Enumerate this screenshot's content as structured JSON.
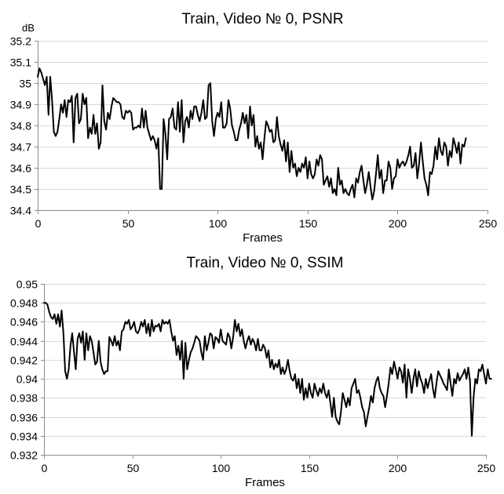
{
  "chart_data": [
    {
      "type": "line",
      "title": "Train, Video № 0, PSNR",
      "xlabel": "Frames",
      "ylabel": "dB",
      "xlim": [
        0,
        250
      ],
      "ylim": [
        34.4,
        35.2
      ],
      "xticks": [
        0,
        50,
        100,
        150,
        200,
        250
      ],
      "yticks": [
        34.4,
        34.5,
        34.6,
        34.7,
        34.8,
        34.9,
        35,
        35.1,
        35.2
      ],
      "ytick_labels": [
        "34.4",
        "34.5",
        "34.6",
        "34.7",
        "34.8",
        "34.9",
        "35",
        "35.1",
        "35.2"
      ],
      "grid": "horizontal",
      "legend": "none",
      "x_start": 0,
      "x_step": 1,
      "values": [
        35.03,
        35.07,
        35.05,
        35.02,
        34.99,
        35.03,
        34.85,
        35.03,
        34.92,
        34.77,
        34.75,
        34.77,
        34.83,
        34.9,
        34.86,
        34.92,
        34.84,
        34.92,
        34.91,
        34.94,
        34.72,
        34.93,
        34.95,
        34.81,
        34.83,
        34.95,
        34.9,
        34.93,
        34.74,
        34.79,
        34.76,
        34.85,
        34.76,
        34.81,
        34.69,
        34.72,
        34.99,
        34.82,
        34.78,
        34.86,
        34.83,
        34.89,
        34.93,
        34.92,
        34.91,
        34.91,
        34.9,
        34.84,
        34.83,
        34.87,
        34.86,
        34.87,
        34.86,
        34.78,
        34.79,
        34.79,
        34.8,
        34.79,
        34.88,
        34.79,
        34.87,
        34.79,
        34.76,
        34.73,
        34.75,
        34.73,
        34.69,
        34.74,
        34.5,
        34.5,
        34.83,
        34.76,
        34.64,
        34.83,
        34.84,
        34.88,
        34.79,
        34.78,
        34.91,
        34.77,
        34.92,
        34.72,
        34.82,
        34.84,
        34.79,
        34.87,
        34.83,
        34.89,
        34.89,
        34.85,
        34.82,
        34.86,
        34.92,
        34.83,
        34.84,
        34.99,
        35.0,
        34.82,
        34.75,
        34.83,
        34.86,
        34.84,
        34.91,
        34.79,
        34.79,
        34.81,
        34.92,
        34.88,
        34.8,
        34.77,
        34.73,
        34.73,
        34.78,
        34.81,
        34.86,
        34.81,
        34.85,
        34.74,
        34.89,
        34.8,
        34.85,
        34.7,
        34.75,
        34.69,
        34.72,
        34.64,
        34.74,
        34.82,
        34.8,
        34.77,
        34.78,
        34.72,
        34.73,
        34.84,
        34.75,
        34.71,
        34.68,
        34.73,
        34.63,
        34.72,
        34.58,
        34.68,
        34.6,
        34.62,
        34.56,
        34.6,
        34.58,
        34.62,
        34.6,
        34.65,
        34.55,
        34.63,
        34.57,
        34.55,
        34.57,
        34.64,
        34.61,
        34.66,
        34.64,
        34.52,
        34.54,
        34.56,
        34.51,
        34.55,
        34.48,
        34.5,
        34.47,
        34.6,
        34.52,
        34.54,
        34.48,
        34.5,
        34.48,
        34.47,
        34.5,
        34.52,
        34.46,
        34.55,
        34.53,
        34.58,
        34.61,
        34.54,
        34.48,
        34.52,
        34.58,
        34.51,
        34.45,
        34.49,
        34.57,
        34.66,
        34.55,
        34.59,
        34.48,
        34.54,
        34.54,
        34.63,
        34.6,
        34.5,
        34.55,
        34.56,
        34.64,
        34.6,
        34.62,
        34.63,
        34.61,
        34.63,
        34.66,
        34.7,
        34.6,
        34.61,
        34.67,
        34.55,
        34.62,
        34.72,
        34.63,
        34.55,
        34.52,
        34.47,
        34.58,
        34.57,
        34.61,
        34.7,
        34.64,
        34.74,
        34.68,
        34.66,
        34.72,
        34.7,
        34.61,
        34.68,
        34.65,
        34.74,
        34.71,
        34.67,
        34.72,
        34.62,
        34.71,
        34.7,
        34.74
      ],
      "color": "#000000"
    },
    {
      "type": "line",
      "title": "Train, Video № 0, SSIM",
      "xlabel": "Frames",
      "ylabel": "",
      "xlim": [
        0,
        250
      ],
      "ylim": [
        0.932,
        0.95
      ],
      "xticks": [
        0,
        50,
        100,
        150,
        200,
        250
      ],
      "yticks": [
        0.932,
        0.934,
        0.936,
        0.938,
        0.94,
        0.942,
        0.944,
        0.946,
        0.948,
        0.95
      ],
      "ytick_labels": [
        "0.932",
        "0.934",
        "0.936",
        "0.938",
        "0.94",
        "0.942",
        "0.944",
        "0.946",
        "0.948",
        "0.95"
      ],
      "grid": "horizontal",
      "legend": "none",
      "x_start": 0,
      "x_step": 1,
      "values": [
        0.948,
        0.948,
        0.9478,
        0.947,
        0.9465,
        0.9463,
        0.9468,
        0.9458,
        0.9468,
        0.9455,
        0.9472,
        0.9448,
        0.9408,
        0.94,
        0.941,
        0.9435,
        0.9448,
        0.9428,
        0.941,
        0.9442,
        0.9448,
        0.9438,
        0.945,
        0.942,
        0.9448,
        0.943,
        0.9445,
        0.944,
        0.9428,
        0.9415,
        0.9418,
        0.944,
        0.9418,
        0.941,
        0.9405,
        0.9408,
        0.9408,
        0.9444,
        0.944,
        0.9435,
        0.9445,
        0.9435,
        0.944,
        0.943,
        0.945,
        0.9452,
        0.946,
        0.9458,
        0.9462,
        0.9452,
        0.9455,
        0.946,
        0.945,
        0.9448,
        0.9452,
        0.946,
        0.9455,
        0.9462,
        0.9448,
        0.9458,
        0.9445,
        0.9462,
        0.945,
        0.9456,
        0.9455,
        0.9458,
        0.945,
        0.9462,
        0.9458,
        0.946,
        0.9458,
        0.9462,
        0.945,
        0.944,
        0.9445,
        0.9425,
        0.9435,
        0.942,
        0.944,
        0.94,
        0.9438,
        0.941,
        0.942,
        0.9428,
        0.9432,
        0.9438,
        0.9445,
        0.9443,
        0.944,
        0.9428,
        0.942,
        0.9445,
        0.943,
        0.9438,
        0.9448,
        0.9446,
        0.9432,
        0.9444,
        0.9442,
        0.9438,
        0.9452,
        0.944,
        0.9438,
        0.9436,
        0.9448,
        0.9444,
        0.9432,
        0.9444,
        0.9462,
        0.945,
        0.9458,
        0.9445,
        0.9452,
        0.944,
        0.9432,
        0.944,
        0.9445,
        0.9436,
        0.9442,
        0.9438,
        0.943,
        0.9442,
        0.943,
        0.943,
        0.9436,
        0.9432,
        0.9422,
        0.943,
        0.9412,
        0.942,
        0.941,
        0.9416,
        0.9412,
        0.942,
        0.9405,
        0.9412,
        0.9405,
        0.941,
        0.942,
        0.9408,
        0.94,
        0.9398,
        0.9405,
        0.939,
        0.94,
        0.9385,
        0.94,
        0.9378,
        0.939,
        0.938,
        0.9395,
        0.9385,
        0.938,
        0.9395,
        0.9388,
        0.9382,
        0.939,
        0.9385,
        0.9395,
        0.9385,
        0.938,
        0.9388,
        0.9375,
        0.936,
        0.938,
        0.936,
        0.9355,
        0.9352,
        0.9365,
        0.9385,
        0.9378,
        0.937,
        0.938,
        0.9372,
        0.939,
        0.9395,
        0.94,
        0.9385,
        0.9388,
        0.938,
        0.937,
        0.9365,
        0.935,
        0.936,
        0.937,
        0.9382,
        0.9375,
        0.939,
        0.9398,
        0.9402,
        0.939,
        0.9385,
        0.9382,
        0.937,
        0.9382,
        0.9395,
        0.9412,
        0.9405,
        0.9418,
        0.941,
        0.94,
        0.9412,
        0.9408,
        0.9396,
        0.9415,
        0.938,
        0.941,
        0.94,
        0.9385,
        0.94,
        0.941,
        0.9392,
        0.9408,
        0.94,
        0.9395,
        0.9385,
        0.94,
        0.939,
        0.9398,
        0.9405,
        0.939,
        0.938,
        0.9395,
        0.9408,
        0.9404,
        0.94,
        0.9395,
        0.9392,
        0.9388,
        0.941,
        0.9395,
        0.9382,
        0.94,
        0.9395,
        0.9406,
        0.9398,
        0.9402,
        0.9405,
        0.941,
        0.94,
        0.9412,
        0.9398,
        0.934,
        0.938,
        0.94,
        0.9395,
        0.941,
        0.9408,
        0.9415,
        0.9405,
        0.9395,
        0.941,
        0.94,
        0.94
      ],
      "color": "#000000"
    }
  ]
}
